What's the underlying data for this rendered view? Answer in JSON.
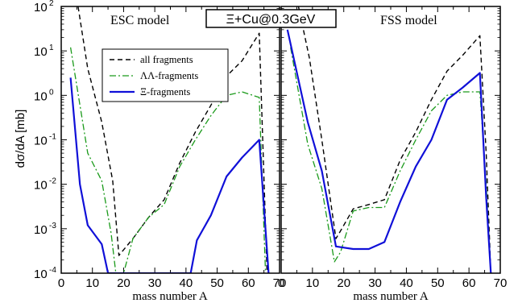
{
  "banner": "Ξ+Cu@0.3GeV",
  "shared": {
    "xlabel": "mass number A",
    "ylabel": "dσ/dA [mb]",
    "ylim_log10": [
      -4,
      2
    ],
    "xlim": [
      0,
      70
    ],
    "y_scale": "log",
    "legend_position": "upper-left of left panel"
  },
  "colors": {
    "all": "#000000",
    "ll": "#1a9a1a",
    "xi": "#1010d8"
  },
  "legend": [
    {
      "key": "all",
      "label": "all fragments"
    },
    {
      "key": "ll",
      "label": "ΛΛ-fragments"
    },
    {
      "key": "xi",
      "label": "Ξ-fragments"
    }
  ],
  "chart_data": [
    {
      "type": "line",
      "panel": "left",
      "title": "ESC model",
      "xlabel": "mass number A",
      "ylabel": "dσ/dA [mb]",
      "xlim": [
        0,
        70
      ],
      "ylim": [
        0.0001,
        100
      ],
      "x_ticks": [
        "0",
        "10",
        "20",
        "30",
        "40",
        "50",
        "60",
        "70"
      ],
      "series": [
        {
          "name": "all fragments",
          "key": "all",
          "points": [
            [
              5,
              150
            ],
            [
              8.5,
              4
            ],
            [
              13,
              0.25
            ],
            [
              16.5,
              0.012
            ],
            [
              18.5,
              0.00025
            ],
            [
              23,
              0.0006
            ],
            [
              28,
              0.0018
            ],
            [
              33,
              0.0045
            ],
            [
              38,
              0.03
            ],
            [
              43,
              0.15
            ],
            [
              48,
              0.6
            ],
            [
              53,
              2.7
            ],
            [
              58,
              6
            ],
            [
              63.5,
              25
            ],
            [
              66,
              0.0001
            ]
          ]
        },
        {
          "name": "ΛΛ-fragments",
          "key": "ll",
          "points": [
            [
              3,
              12
            ],
            [
              8.5,
              0.05
            ],
            [
              13,
              0.012
            ],
            [
              16,
              0.0008
            ],
            [
              17.5,
              0.0001
            ],
            [
              20,
              0.0001
            ],
            [
              23,
              0.0006
            ],
            [
              28,
              0.0018
            ],
            [
              33,
              0.0035
            ],
            [
              38,
              0.025
            ],
            [
              43,
              0.1
            ],
            [
              48,
              0.35
            ],
            [
              53,
              1
            ],
            [
              58,
              1.2
            ],
            [
              63.5,
              0.9
            ],
            [
              65.5,
              0.0001
            ]
          ]
        },
        {
          "name": "Ξ-fragments",
          "key": "xi",
          "points": [
            [
              3,
              2.5
            ],
            [
              6,
              0.01
            ],
            [
              8.5,
              0.0012
            ],
            [
              13,
              0.00045
            ],
            [
              15,
              0.0001
            ],
            [
              41.5,
              0.0001
            ],
            [
              43.5,
              0.00055
            ],
            [
              48,
              0.002
            ],
            [
              53,
              0.015
            ],
            [
              58,
              0.04
            ],
            [
              63.5,
              0.1
            ],
            [
              66.5,
              0.0001
            ]
          ]
        }
      ]
    },
    {
      "type": "line",
      "panel": "right",
      "title": "FSS model",
      "xlabel": "mass number A",
      "ylabel": "dσ/dA [mb]",
      "xlim": [
        0,
        70
      ],
      "ylim": [
        0.0001,
        100
      ],
      "x_ticks": [
        "0",
        "10",
        "20",
        "30",
        "40",
        "50",
        "60",
        "70"
      ],
      "series": [
        {
          "name": "all fragments",
          "key": "all",
          "points": [
            [
              5,
              150
            ],
            [
              9,
              7
            ],
            [
              13,
              0.1
            ],
            [
              17.5,
              0.0006
            ],
            [
              19,
              0.0009
            ],
            [
              23,
              0.0028
            ],
            [
              28,
              0.0035
            ],
            [
              33,
              0.0045
            ],
            [
              38,
              0.035
            ],
            [
              43,
              0.15
            ],
            [
              48,
              0.8
            ],
            [
              53,
              3.5
            ],
            [
              58,
              8
            ],
            [
              63.5,
              22
            ],
            [
              65.5,
              0.05
            ],
            [
              67,
              0.0001
            ]
          ]
        },
        {
          "name": "ΛΛ-fragments",
          "key": "ll",
          "points": [
            [
              3,
              12
            ],
            [
              8.5,
              0.08
            ],
            [
              13,
              0.008
            ],
            [
              17,
              0.00018
            ],
            [
              19,
              0.0003
            ],
            [
              23,
              0.0025
            ],
            [
              28,
              0.003
            ],
            [
              33,
              0.003
            ],
            [
              38,
              0.02
            ],
            [
              43,
              0.1
            ],
            [
              48,
              0.45
            ],
            [
              53,
              1
            ],
            [
              58,
              1.2
            ],
            [
              63.5,
              1.2
            ],
            [
              65.5,
              0.01
            ],
            [
              67,
              0.0001
            ]
          ]
        },
        {
          "name": "Ξ-fragments",
          "key": "xi",
          "points": [
            [
              2,
              30
            ],
            [
              8.5,
              0.25
            ],
            [
              13,
              0.02
            ],
            [
              17.5,
              0.0004
            ],
            [
              23,
              0.00035
            ],
            [
              28,
              0.00035
            ],
            [
              33,
              0.0005
            ],
            [
              38,
              0.004
            ],
            [
              43,
              0.025
            ],
            [
              48,
              0.1
            ],
            [
              53,
              0.8
            ],
            [
              58,
              1.5
            ],
            [
              63.5,
              3.2
            ],
            [
              65.5,
              0.005
            ],
            [
              67,
              0.0001
            ]
          ]
        }
      ]
    }
  ]
}
